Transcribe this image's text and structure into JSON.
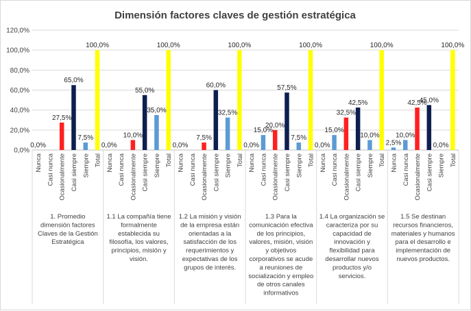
{
  "chart_data": {
    "type": "bar",
    "title": "Dimensión factores claves de gestión estratégica",
    "ylim": [
      0,
      120
    ],
    "yticks": [
      0,
      20,
      40,
      60,
      80,
      100,
      120
    ],
    "ytick_labels": [
      "0,0%",
      "20,0%",
      "40,0%",
      "60,0%",
      "80,0%",
      "100,0%",
      "120,0%"
    ],
    "grid": true,
    "legend": "none",
    "categories": [
      "Nunca",
      "Casi nunca",
      "Ocasionalmente",
      "Casi siempre",
      "Siempre",
      "Total"
    ],
    "category_colors": [
      "#5b9bd5",
      "#5b9bd5",
      "#ff2020",
      "#0d1f4f",
      "#5b9bd5",
      "#ffff00"
    ],
    "groups": [
      {
        "label": "1. Promedio dimensión factores Claves de la Gestión Estratégica",
        "label_lines": [
          "1. Promedio",
          "dimensión factores",
          "Claves de la Gestión",
          "Estratégica"
        ],
        "values": [
          0,
          0,
          27.5,
          65,
          7.5,
          100
        ],
        "value_labels": [
          "0,0%",
          "",
          "27,5%",
          "65,0%",
          "7,5%",
          "100,0%"
        ]
      },
      {
        "label": "1.1 La compañía tiene formalmente establecida su filosofía, los valores, principios, misión y visión.",
        "label_lines": [
          "1.1 La compañía tiene",
          "formalmente",
          "establecida su",
          "filosofía, los valores,",
          "principios, misión y",
          "visión."
        ],
        "values": [
          0,
          0,
          10,
          55,
          35,
          100
        ],
        "value_labels": [
          "0,0%",
          "",
          "10,0%",
          "55,0%",
          "35,0%",
          "100,0%"
        ]
      },
      {
        "label": "1.2 La misión y visión de la empresa están orientadas a la satisfacción de los requerimientos y expectativas de los grupos de interés.",
        "label_lines": [
          "1.2 La misión y visión",
          "de la empresa están",
          "orientadas a la",
          "satisfacción de los",
          "requerimientos y",
          "expectativas de los",
          "grupos de interés."
        ],
        "values": [
          0,
          0,
          7.5,
          60,
          32.5,
          100
        ],
        "value_labels": [
          "0,0%",
          "",
          "7,5%",
          "60,0%",
          "32,5%",
          "100,0%"
        ]
      },
      {
        "label": "1.3 Para la comunicación efectiva de los principios, valores, misión, visión y objetivos corporativos se acude a reuniones de socialización y empleo de otros canales informativos",
        "label_lines": [
          "1.3 Para la",
          "comunicación efectiva",
          "de los principios,",
          "valores, misión, visión",
          "y objetivos",
          "corporativos se acude",
          "a reuniones de",
          "socialización y empleo",
          "de otros canales",
          "informativos"
        ],
        "values": [
          0,
          15,
          20,
          57.5,
          7.5,
          100
        ],
        "value_labels": [
          "0,0%",
          "15,0%",
          "20,0%",
          "57,5%",
          "7,5%",
          "100,0%"
        ]
      },
      {
        "label": "1.4 La organización se caracteriza por su capacidad de innovación y flexibilidad para desarrollar nuevos productos y/o servicios.",
        "label_lines": [
          "1.4 La organización se",
          "caracteriza por su",
          "capacidad de",
          "innovación y",
          "flexibilidad para",
          "desarrollar nuevos",
          "productos y/o",
          "servicios."
        ],
        "values": [
          0,
          15,
          32.5,
          42.5,
          10,
          100
        ],
        "value_labels": [
          "0,0%",
          "15,0%",
          "32,5%",
          "42,5%",
          "10,0%",
          "100,0%"
        ]
      },
      {
        "label": "1.5 Se destinan recursos financieros, materiales y humanos para el desarrollo e implementación de nuevos productos.",
        "label_lines": [
          "1.5 Se destinan",
          "recursos financieros,",
          "materiales y humanos",
          "para el desarrollo e",
          "implementación de",
          "nuevos productos."
        ],
        "values": [
          2.5,
          10,
          42.5,
          45,
          0,
          100
        ],
        "value_labels": [
          "2,5%",
          "10,0%",
          "42,5%",
          "45,0%",
          "0,0%",
          "100,0%"
        ]
      }
    ]
  }
}
